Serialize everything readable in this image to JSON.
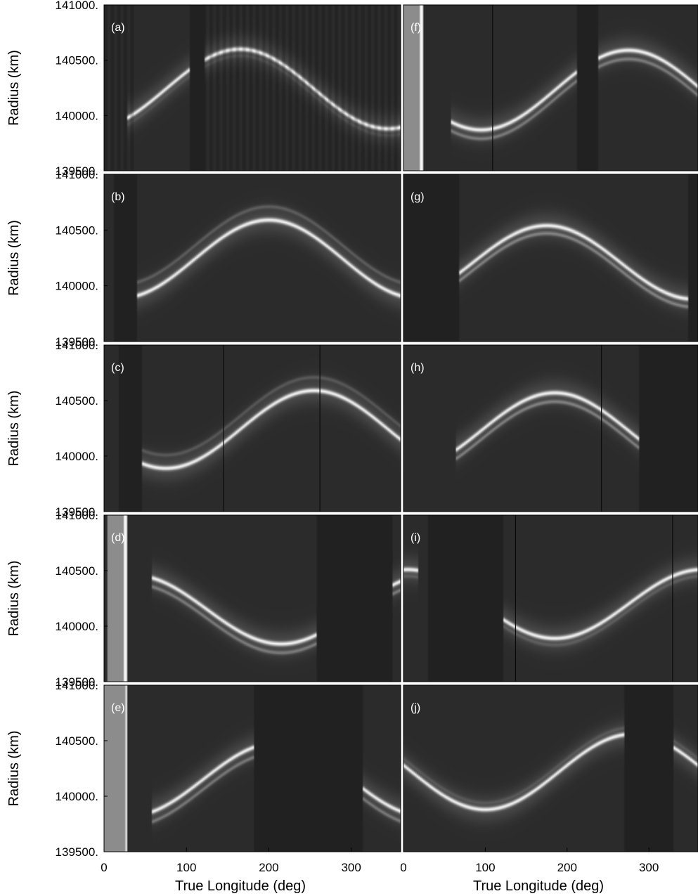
{
  "chart_data": {
    "type": "heatmap",
    "layout": {
      "rows": 5,
      "cols": 2
    },
    "xlabel": "True Longitude (deg)",
    "ylabel": "Radius (km)",
    "xlim": [
      0,
      360
    ],
    "ylim": [
      139500,
      141000
    ],
    "x_ticks": [
      0,
      100,
      200,
      300
    ],
    "y_tick_labels": [
      "141000.",
      "140500.",
      "140000.",
      "139500."
    ],
    "y_ticks": [
      141000,
      140500,
      140000,
      139500
    ],
    "colormap": "grayscale",
    "panels": [
      {
        "label": "(a)",
        "ring": {
          "mean": 140240,
          "amp": 360,
          "peak_lon": 165
        },
        "secondary": {
          "offset": -60,
          "strength": 0.15
        },
        "data_range": [
          [
            28,
            360
          ]
        ],
        "gaps": [
          [
            104,
            122
          ]
        ],
        "bright_strips": [],
        "stripes": {
          "ranges": [
            [
              0,
              40
            ],
            [
              122,
              360
            ]
          ],
          "spacing": 4
        },
        "dark_lines": []
      },
      {
        "label": "(b)",
        "ring": {
          "mean": 140240,
          "amp": 350,
          "peak_lon": 200
        },
        "secondary": {
          "offset": 120,
          "strength": 0.35
        },
        "data_range": [
          [
            40,
            360
          ]
        ],
        "gaps": [
          [
            12,
            40
          ]
        ],
        "bright_strips": [],
        "stripes": null,
        "dark_lines": []
      },
      {
        "label": "(c)",
        "ring": {
          "mean": 140240,
          "amp": 350,
          "peak_lon": 255
        },
        "secondary": {
          "offset": 120,
          "strength": 0.3
        },
        "data_range": [
          [
            46,
            360
          ]
        ],
        "gaps": [
          [
            18,
            46
          ]
        ],
        "bright_strips": [],
        "stripes": null,
        "dark_lines": [
          145,
          262
        ]
      },
      {
        "label": "(d)",
        "ring": {
          "mean": 140150,
          "amp": 310,
          "peak_lon": 35
        },
        "secondary": {
          "offset": -80,
          "strength": 0.55
        },
        "data_range": [
          [
            58,
            258
          ],
          [
            350,
            360
          ]
        ],
        "gaps": [
          [
            258,
            350
          ]
        ],
        "bright_strips": [
          {
            "from": 5,
            "to": 24,
            "level": 0.55
          },
          {
            "from": 24,
            "to": 27,
            "level": 0.97
          }
        ],
        "stripes": null,
        "dark_lines": []
      },
      {
        "label": "(e)",
        "ring": {
          "mean": 140150,
          "amp": 330,
          "peak_lon": 210
        },
        "secondary": {
          "offset": -90,
          "strength": 0.55
        },
        "data_range": [
          [
            58,
            182
          ],
          [
            313,
            360
          ]
        ],
        "gaps": [
          [
            182,
            313
          ]
        ],
        "bright_strips": [
          {
            "from": 0,
            "to": 25,
            "level": 0.55
          },
          {
            "from": 26,
            "to": 28,
            "level": 0.97
          }
        ],
        "stripes": null,
        "dark_lines": []
      },
      {
        "label": "(f)",
        "ring": {
          "mean": 140230,
          "amp": 360,
          "peak_lon": 275
        },
        "secondary": {
          "offset": -80,
          "strength": 0.55
        },
        "data_range": [
          [
            58,
            360
          ]
        ],
        "gaps": [
          [
            212,
            238
          ]
        ],
        "bright_strips": [
          {
            "from": 0,
            "to": 20,
            "level": 0.55
          },
          {
            "from": 20,
            "to": 24,
            "level": 0.97
          }
        ],
        "stripes": null,
        "dark_lines": [
          109
        ]
      },
      {
        "label": "(g)",
        "ring": {
          "mean": 140210,
          "amp": 330,
          "peak_lon": 175
        },
        "secondary": {
          "offset": -70,
          "strength": 0.6
        },
        "data_range": [
          [
            68,
            348
          ]
        ],
        "gaps": [
          [
            0,
            68
          ],
          [
            348,
            360
          ]
        ],
        "bright_strips": [],
        "stripes": null,
        "dark_lines": []
      },
      {
        "label": "(h)",
        "ring": {
          "mean": 140230,
          "amp": 340,
          "peak_lon": 185
        },
        "secondary": {
          "offset": -80,
          "strength": 0.6
        },
        "data_range": [
          [
            63,
            288
          ]
        ],
        "gaps": [
          [
            288,
            360
          ]
        ],
        "bright_strips": [],
        "stripes": null,
        "dark_lines": [
          242
        ]
      },
      {
        "label": "(i)",
        "ring": {
          "mean": 140200,
          "amp": 310,
          "peak_lon": 5
        },
        "secondary": {
          "offset": -60,
          "strength": 0.25
        },
        "data_range": [
          [
            0,
            18
          ],
          [
            122,
            360
          ]
        ],
        "gaps": [
          [
            30,
            122
          ]
        ],
        "bright_strips": [],
        "stripes": null,
        "dark_lines": [
          137,
          329
        ]
      },
      {
        "label": "(j)",
        "ring": {
          "mean": 140220,
          "amp": 340,
          "peak_lon": 280
        },
        "secondary": {
          "offset": 60,
          "strength": 0.2
        },
        "data_range": [
          [
            0,
            360
          ]
        ],
        "gaps": [
          [
            270,
            330
          ]
        ],
        "bright_strips": [],
        "stripes": null,
        "dark_lines": []
      }
    ]
  }
}
